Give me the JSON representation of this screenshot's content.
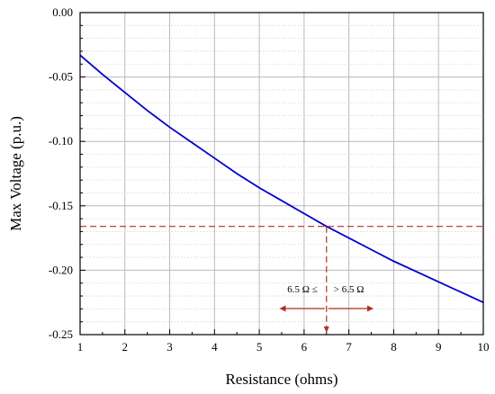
{
  "chart_data": {
    "type": "line",
    "xlabel": "Resistance (ohms)",
    "ylabel": "Max Voltage (p.u.)",
    "xlim": [
      1,
      10
    ],
    "ylim": [
      -0.25,
      0.0
    ],
    "x_ticks": [
      "1",
      "2",
      "3",
      "4",
      "5",
      "6",
      "7",
      "8",
      "9",
      "10"
    ],
    "y_ticks": [
      "0.00",
      "-0.05",
      "-0.10",
      "-0.15",
      "-0.20",
      "-0.25"
    ],
    "grid": true,
    "line_color": "#0000cc",
    "series": [
      {
        "x": [
          1,
          1.5,
          2,
          2.5,
          3,
          3.5,
          4,
          4.5,
          5,
          5.5,
          6,
          6.5,
          7,
          7.5,
          8,
          8.5,
          9,
          9.5,
          10
        ],
        "values": [
          -0.033,
          -0.048,
          -0.062,
          -0.076,
          -0.089,
          -0.101,
          -0.113,
          -0.125,
          -0.136,
          -0.146,
          -0.156,
          -0.166,
          -0.175,
          -0.184,
          -0.193,
          -0.201,
          -0.209,
          -0.217,
          -0.225
        ]
      }
    ],
    "threshold": {
      "x": 6.5,
      "y": -0.166,
      "color": "#b03020",
      "left_label": "6.5 Ω ≤",
      "right_label": "> 6.5 Ω"
    }
  }
}
